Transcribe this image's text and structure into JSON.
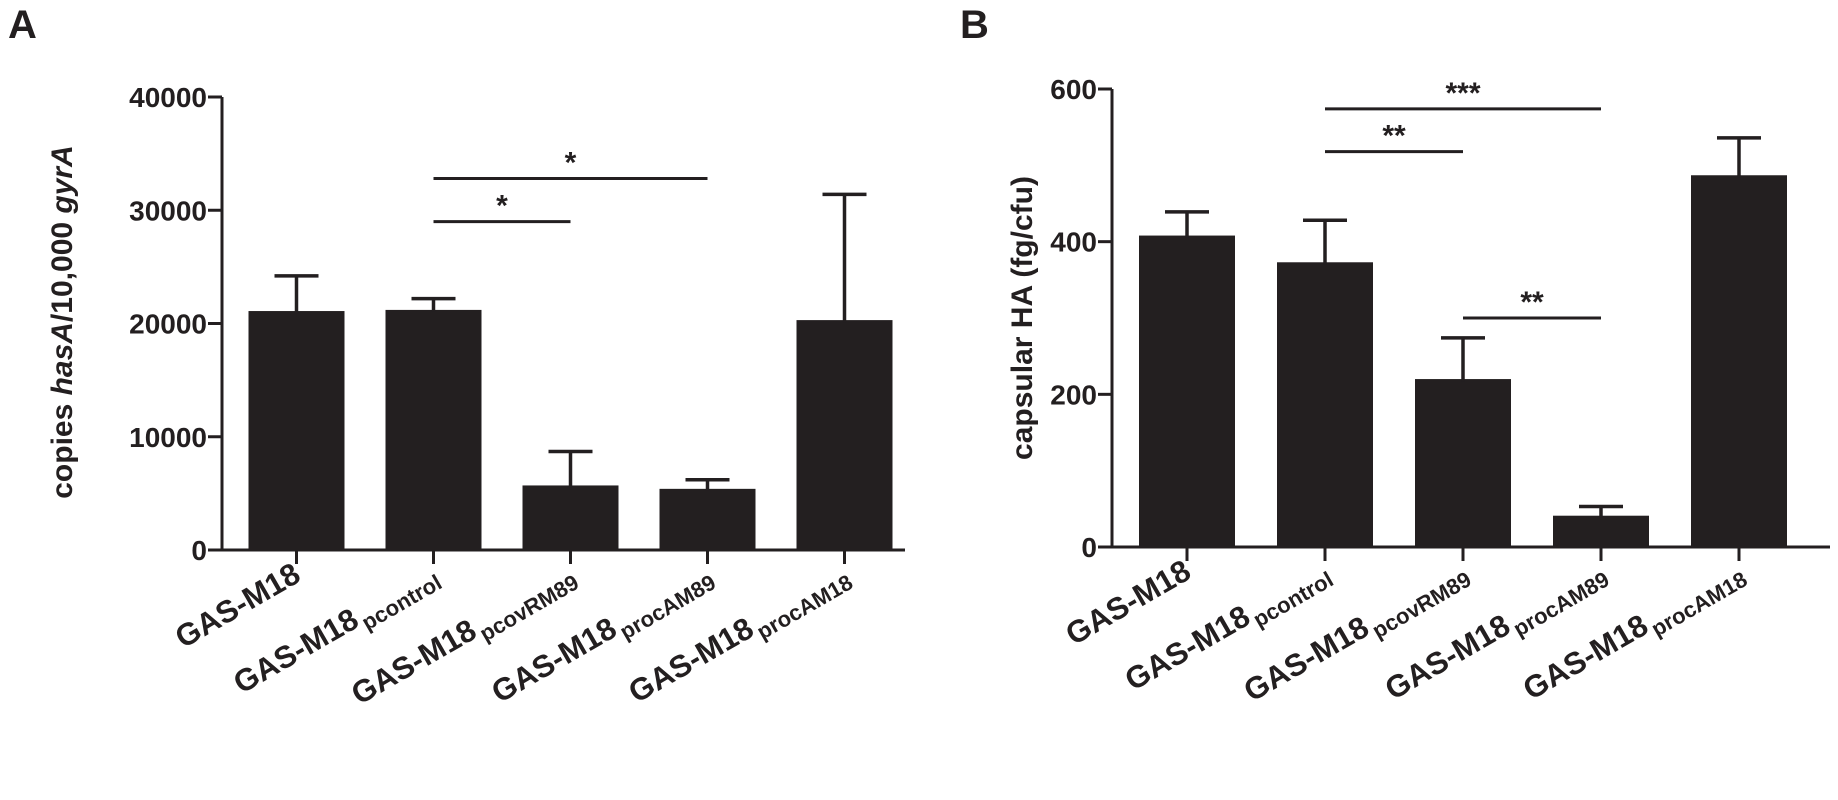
{
  "chart_data": [
    {
      "panel_label": "A",
      "type": "bar",
      "ylabel_parts": [
        {
          "text": "copies ",
          "italic": false
        },
        {
          "text": "hasA",
          "italic": true
        },
        {
          "text": "/10,000 ",
          "italic": false
        },
        {
          "text": "gyrA",
          "italic": true
        }
      ],
      "ylim": [
        0,
        40000
      ],
      "yticks": [
        0,
        10000,
        20000,
        30000,
        40000
      ],
      "categories": [
        {
          "main": "GAS-M18",
          "sub": ""
        },
        {
          "main": "GAS-M18",
          "sub": "pcontrol"
        },
        {
          "main": "GAS-M18",
          "sub": "pcovRM89"
        },
        {
          "main": "GAS-M18",
          "sub": "procAM89"
        },
        {
          "main": "GAS-M18",
          "sub": "procAM18"
        }
      ],
      "values": [
        21100,
        21200,
        5700,
        5400,
        20300
      ],
      "error_upper": [
        24200,
        22200,
        8700,
        6200,
        31400
      ],
      "significance": [
        {
          "from": 1,
          "to": 2,
          "level": 29000,
          "label": "*"
        },
        {
          "from": 1,
          "to": 3,
          "level": 32800,
          "label": "*"
        }
      ],
      "bar_color": "#231f20"
    },
    {
      "panel_label": "B",
      "type": "bar",
      "ylabel_parts": [
        {
          "text": "capsular HA (fg/cfu)",
          "italic": false
        }
      ],
      "ylim": [
        0,
        600
      ],
      "yticks": [
        0,
        200,
        400,
        600
      ],
      "categories": [
        {
          "main": "GAS-M18",
          "sub": ""
        },
        {
          "main": "GAS-M18",
          "sub": "pcontrol"
        },
        {
          "main": "GAS-M18",
          "sub": "pcovRM89"
        },
        {
          "main": "GAS-M18",
          "sub": "procAM89"
        },
        {
          "main": "GAS-M18",
          "sub": "procAM18"
        }
      ],
      "values": [
        408,
        373,
        220,
        41,
        487
      ],
      "error_upper": [
        439,
        428,
        274,
        53,
        536
      ],
      "significance": [
        {
          "from": 1,
          "to": 2,
          "level": 518,
          "label": "**"
        },
        {
          "from": 1,
          "to": 3,
          "level": 574,
          "label": "***"
        },
        {
          "from": 2,
          "to": 3,
          "level": 300,
          "label": "**"
        }
      ],
      "bar_color": "#231f20"
    }
  ]
}
